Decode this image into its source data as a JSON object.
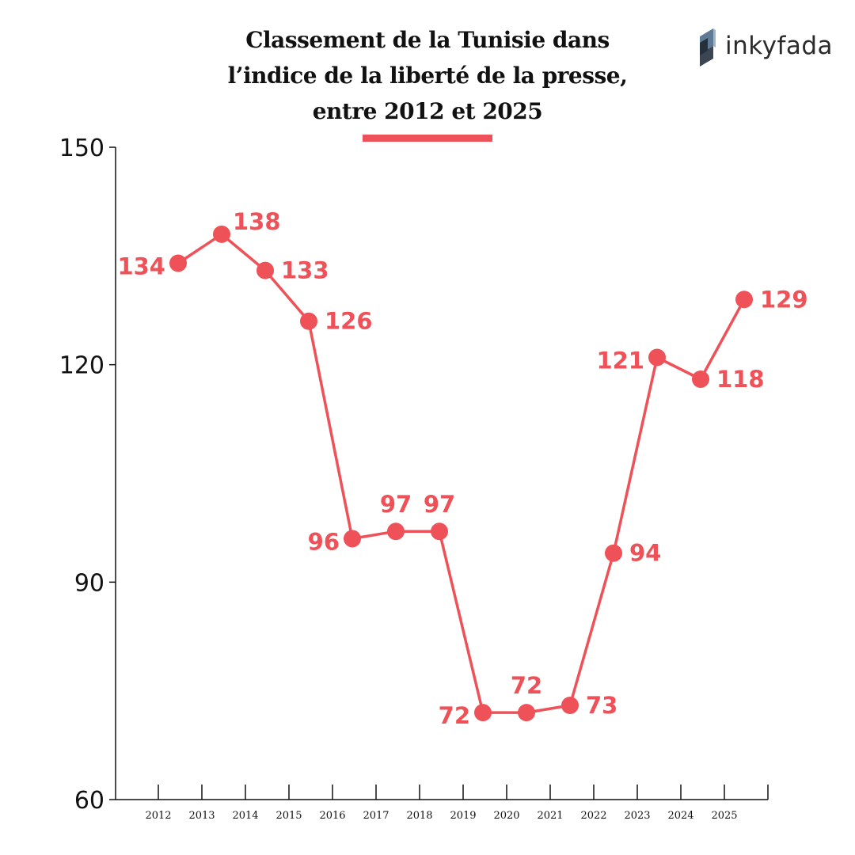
{
  "title_lines": [
    "Classement de la Tunisie dans",
    "l’indice de la liberté de la presse,",
    "entre 2012 et 2025"
  ],
  "brand": {
    "name": "inkyfada",
    "icon": "inkyfada-logo-icon"
  },
  "colors": {
    "accent": "#ee5157",
    "axis": "#111111",
    "text": "#111111"
  },
  "chart_data": {
    "type": "line",
    "title": "Classement de la Tunisie dans l’indice de la liberté de la presse, entre 2012 et 2025",
    "xlabel": "",
    "ylabel": "",
    "categories": [
      "2012",
      "2013",
      "2014",
      "2015",
      "2016",
      "2017",
      "2018",
      "2019",
      "2020",
      "2021",
      "2022",
      "2023",
      "2024",
      "2025"
    ],
    "values": [
      134,
      138,
      133,
      126,
      96,
      97,
      97,
      72,
      72,
      73,
      94,
      121,
      118,
      129
    ],
    "ylim": [
      60,
      150
    ],
    "yticks": [
      60,
      90,
      120,
      150
    ],
    "grid": false,
    "legend": "none"
  }
}
